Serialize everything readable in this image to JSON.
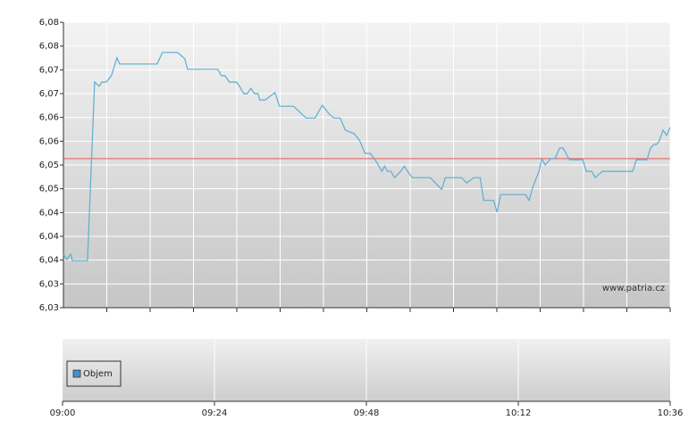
{
  "chart_data": [
    {
      "type": "line",
      "x": [
        0,
        0.56,
        1.13,
        1.41,
        3.81,
        4.94,
        5.65,
        6.07,
        6.78,
        7.62,
        8.47,
        8.89,
        14.82,
        15.67,
        18.07,
        19.2,
        19.62,
        24,
        24.42,
        24.99,
        25.55,
        26.26,
        27.39,
        27.95,
        28.52,
        29.08,
        29.65,
        30.21,
        30.78,
        31.06,
        31.91,
        33.46,
        34.17,
        36.42,
        38.4,
        39.81,
        40.94,
        42.07,
        42.78,
        43.77,
        44.61,
        46.02,
        46.87,
        47.72,
        48.57,
        49.41,
        50.4,
        50.82,
        51.25,
        51.81,
        52.38,
        53.37,
        53.93,
        54.5,
        55.2,
        58.02,
        59.86,
        60.42,
        62.97,
        63.81,
        64.94,
        65.93,
        66.5,
        68.05,
        68.61,
        69.18,
        73.13,
        73.69,
        74.26,
        75.25,
        75.67,
        76.24,
        77.08,
        77.79,
        78.5,
        79.06,
        80.05,
        82.17,
        82.73,
        83.58,
        84.14,
        85.27,
        90.07,
        90.64,
        92.33,
        92.89,
        93.46,
        93.88,
        94.31,
        94.87,
        95.44,
        96
      ],
      "values": [
        6.0366,
        6.0356,
        6.0366,
        6.0354,
        6.0354,
        6.0692,
        6.0684,
        6.0692,
        6.0692,
        6.0705,
        6.0738,
        6.0726,
        6.0726,
        6.0748,
        6.0748,
        6.0736,
        6.0716,
        6.0716,
        6.0716,
        6.0704,
        6.0704,
        6.0692,
        6.0692,
        6.0682,
        6.067,
        6.067,
        6.068,
        6.067,
        6.067,
        6.0658,
        6.0658,
        6.0672,
        6.0646,
        6.0646,
        6.0624,
        6.0624,
        6.0648,
        6.0631,
        6.0624,
        6.0624,
        6.0601,
        6.0594,
        6.0581,
        6.0557,
        6.0557,
        6.0543,
        6.0523,
        6.0533,
        6.0523,
        6.0523,
        6.0511,
        6.0523,
        6.0533,
        6.0522,
        6.0511,
        6.0511,
        6.0489,
        6.0511,
        6.0511,
        6.0501,
        6.0511,
        6.0511,
        6.0468,
        6.0468,
        6.0446,
        6.0479,
        6.0479,
        6.0468,
        6.0493,
        6.0523,
        6.0547,
        6.0535,
        6.0547,
        6.0547,
        6.0567,
        6.0567,
        6.0545,
        6.0545,
        6.0523,
        6.0523,
        6.0511,
        6.0523,
        6.0523,
        6.0545,
        6.0545,
        6.0567,
        6.0574,
        6.0574,
        6.0581,
        6.0601,
        6.0591,
        6.0606
      ],
      "color": "#5aaed3",
      "reference_line": {
        "value": 6.0547,
        "color": "#e05a5a"
      },
      "xlim": [
        0,
        96
      ],
      "ylim": [
        6.0265,
        6.0805
      ],
      "yticks": [
        {
          "value": 6.0265,
          "label": "6,03"
        },
        {
          "value": 6.031,
          "label": "6,03"
        },
        {
          "value": 6.0355,
          "label": "6,04"
        },
        {
          "value": 6.04,
          "label": "6,04"
        },
        {
          "value": 6.0445,
          "label": "6,04"
        },
        {
          "value": 6.049,
          "label": "6,05"
        },
        {
          "value": 6.0535,
          "label": "6,05"
        },
        {
          "value": 6.058,
          "label": "6,06"
        },
        {
          "value": 6.0625,
          "label": "6,06"
        },
        {
          "value": 6.067,
          "label": "6,07"
        },
        {
          "value": 6.0715,
          "label": "6,07"
        },
        {
          "value": 6.076,
          "label": "6,08"
        },
        {
          "value": 6.0805,
          "label": "6,08"
        }
      ],
      "grid": true,
      "watermark": "www.patria.cz"
    },
    {
      "type": "bar",
      "series": [
        {
          "name": "Objem",
          "color": "#4a90c8",
          "values": []
        }
      ],
      "xlim": [
        0,
        96
      ],
      "xticks": [
        {
          "value": 0,
          "label": "09:00"
        },
        {
          "value": 24,
          "label": "09:24"
        },
        {
          "value": 48,
          "label": "09:48"
        },
        {
          "value": 72,
          "label": "10:12"
        },
        {
          "value": 96,
          "label": "10:36"
        }
      ],
      "grid": true,
      "legend": "lower-left"
    }
  ]
}
